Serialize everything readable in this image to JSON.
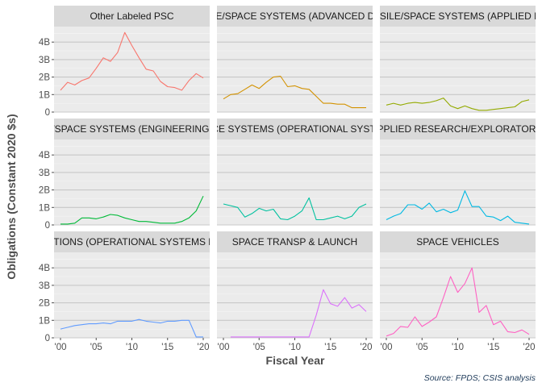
{
  "chart_data": {
    "type": "line",
    "facets": "3x3 small multiples, shared axes",
    "xlabel": "Fiscal Year",
    "ylabel": "Obligations (Constant 2020 $s)",
    "caption": "Source: FPDS; CSIS analysis",
    "xlim": [
      2000,
      2020
    ],
    "ylim": [
      0,
      4.7
    ],
    "x_ticks": [
      {
        "value": 2000,
        "label": "'00"
      },
      {
        "value": 2005,
        "label": "'05"
      },
      {
        "value": 2010,
        "label": "'10"
      },
      {
        "value": 2015,
        "label": "'15"
      },
      {
        "value": 2020,
        "label": "'20"
      }
    ],
    "y_ticks": [
      {
        "value": 0,
        "label": "0"
      },
      {
        "value": 1,
        "label": "1B"
      },
      {
        "value": 2,
        "label": "2B"
      },
      {
        "value": 3,
        "label": "3B"
      },
      {
        "value": 4,
        "label": "4B"
      }
    ],
    "grid": true,
    "legend": "none",
    "panels": [
      {
        "title": "Other Labeled PSC",
        "color": "#f8766d",
        "x": [
          2000,
          2001,
          2002,
          2003,
          2004,
          2005,
          2006,
          2007,
          2008,
          2009,
          2010,
          2011,
          2012,
          2013,
          2014,
          2015,
          2016,
          2017,
          2018,
          2019,
          2020
        ],
        "y": [
          1.25,
          1.7,
          1.55,
          1.8,
          1.95,
          2.5,
          3.1,
          2.9,
          3.4,
          4.55,
          3.8,
          3.1,
          2.45,
          2.35,
          1.75,
          1.45,
          1.4,
          1.25,
          1.8,
          2.2,
          1.95
        ]
      },
      {
        "title": "RDT&E: MISSILE/SPACE SYSTEMS (ADVANCED DEVELOPMENT)",
        "color": "#d39200",
        "x": [
          2000,
          2001,
          2002,
          2003,
          2004,
          2005,
          2006,
          2007,
          2008,
          2009,
          2010,
          2011,
          2012,
          2013,
          2014,
          2015,
          2016,
          2017,
          2018,
          2019,
          2020
        ],
        "y": [
          0.75,
          1.0,
          1.05,
          1.3,
          1.55,
          1.35,
          1.7,
          2.0,
          2.05,
          1.45,
          1.5,
          1.35,
          1.3,
          0.9,
          0.5,
          0.5,
          0.45,
          0.45,
          0.25,
          0.25,
          0.25
        ]
      },
      {
        "title": "RDT&E: MISSILE/SPACE SYSTEMS (APPLIED RESEARCH)",
        "color": "#93aa00",
        "x": [
          2000,
          2001,
          2002,
          2003,
          2004,
          2005,
          2006,
          2007,
          2008,
          2009,
          2010,
          2011,
          2012,
          2013,
          2014,
          2015,
          2016,
          2017,
          2018,
          2019,
          2020
        ],
        "y": [
          0.4,
          0.5,
          0.4,
          0.5,
          0.55,
          0.5,
          0.55,
          0.65,
          0.8,
          0.35,
          0.2,
          0.35,
          0.2,
          0.1,
          0.1,
          0.15,
          0.2,
          0.25,
          0.3,
          0.6,
          0.7
        ]
      },
      {
        "title": "RDT&E: MISSILE/SPACE SYSTEMS (ENGINEERING DEVELOPMENT)",
        "color": "#00ba38",
        "x": [
          2000,
          2001,
          2002,
          2003,
          2004,
          2005,
          2006,
          2007,
          2008,
          2009,
          2010,
          2011,
          2012,
          2013,
          2014,
          2015,
          2016,
          2017,
          2018,
          2019,
          2020
        ],
        "y": [
          0.05,
          0.05,
          0.1,
          0.4,
          0.4,
          0.35,
          0.45,
          0.6,
          0.55,
          0.4,
          0.3,
          0.2,
          0.2,
          0.15,
          0.1,
          0.1,
          0.1,
          0.2,
          0.4,
          0.8,
          1.65
        ]
      },
      {
        "title": "RDT&E: MISSILE/SPACE SYSTEMS (OPERATIONAL SYSTEMS DEVELOPMENT)",
        "color": "#00c19f",
        "x": [
          2000,
          2001,
          2002,
          2003,
          2004,
          2005,
          2006,
          2007,
          2008,
          2009,
          2010,
          2011,
          2012,
          2013,
          2014,
          2015,
          2016,
          2017,
          2018,
          2019,
          2020
        ],
        "y": [
          1.2,
          1.1,
          1.0,
          0.45,
          0.65,
          0.95,
          0.8,
          0.9,
          0.35,
          0.3,
          0.5,
          0.8,
          1.55,
          0.3,
          0.3,
          0.4,
          0.5,
          0.35,
          0.5,
          1.0,
          1.2
        ]
      },
      {
        "title": "RDT&E: SPACE (APPLIED RESEARCH/EXPLORATORY DEVELOPMENT)",
        "color": "#00b9e3",
        "x": [
          2000,
          2001,
          2002,
          2003,
          2004,
          2005,
          2006,
          2007,
          2008,
          2009,
          2010,
          2011,
          2012,
          2013,
          2014,
          2015,
          2016,
          2017,
          2018,
          2019,
          2020
        ],
        "y": [
          0.3,
          0.5,
          0.65,
          1.15,
          1.15,
          0.9,
          1.25,
          0.75,
          0.9,
          0.7,
          0.85,
          1.95,
          1.05,
          1.05,
          0.5,
          0.45,
          0.25,
          0.5,
          0.15,
          0.1,
          0.05
        ]
      },
      {
        "title": "SPACE APPLICATIONS (OPERATIONAL SYSTEMS DEVELOPMENT)",
        "color": "#619cff",
        "x": [
          2000,
          2001,
          2002,
          2003,
          2004,
          2005,
          2006,
          2007,
          2008,
          2009,
          2010,
          2011,
          2012,
          2013,
          2014,
          2015,
          2016,
          2017,
          2018,
          2019,
          2020
        ],
        "y": [
          0.5,
          0.6,
          0.7,
          0.75,
          0.8,
          0.8,
          0.85,
          0.8,
          0.95,
          0.95,
          0.95,
          1.05,
          0.95,
          0.9,
          0.85,
          0.95,
          0.95,
          1.0,
          1.0,
          0.05,
          0.05
        ]
      },
      {
        "title": "SPACE TRANSP & LAUNCH",
        "color": "#db72fb",
        "x": [
          2001,
          2002,
          2003,
          2004,
          2005,
          2006,
          2007,
          2008,
          2009,
          2010,
          2011,
          2012,
          2013,
          2014,
          2015,
          2016,
          2017,
          2018,
          2019,
          2020
        ],
        "y": [
          0.05,
          0.05,
          0.05,
          0.05,
          0.05,
          0.05,
          0.05,
          0.05,
          0.05,
          0.05,
          0.05,
          0.05,
          1.3,
          2.75,
          1.95,
          1.8,
          2.3,
          1.7,
          1.9,
          1.5
        ]
      },
      {
        "title": "SPACE VEHICLES",
        "color": "#ff61c3",
        "x": [
          2000,
          2001,
          2002,
          2003,
          2004,
          2005,
          2006,
          2007,
          2008,
          2009,
          2010,
          2011,
          2012,
          2013,
          2014,
          2015,
          2016,
          2017,
          2018,
          2019,
          2020
        ],
        "y": [
          0.1,
          0.25,
          0.65,
          0.6,
          1.2,
          0.65,
          0.9,
          1.2,
          2.3,
          3.5,
          2.6,
          3.1,
          4.0,
          1.45,
          1.85,
          0.75,
          0.95,
          0.35,
          0.3,
          0.45,
          0.2
        ]
      }
    ]
  }
}
